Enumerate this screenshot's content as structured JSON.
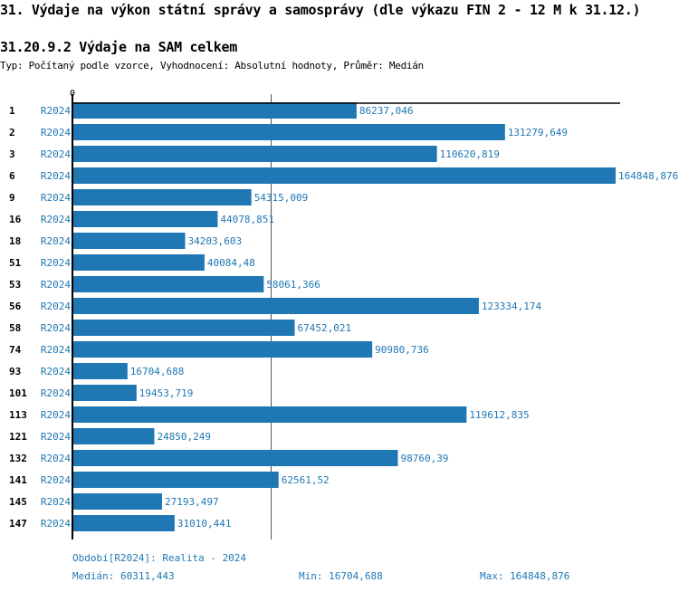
{
  "title": "31. Výdaje na výkon státní správy a samosprávy (dle výkazu FIN 2 - 12 M k 31.12.)",
  "subtitle": "31.20.9.2 Výdaje na SAM celkem",
  "description": "Typ: Počítaný podle vzorce, Vyhodnocení: Absolutní hodnoty, Průměr: Medián",
  "colors": {
    "bar": "#1f77b4",
    "text_blue": "#1f77b4"
  },
  "chart_data": {
    "type": "bar",
    "orientation": "horizontal",
    "x_tick_label": "0",
    "xlim": [
      0,
      166000
    ],
    "period_label": "R2024",
    "categories": [
      "1",
      "2",
      "3",
      "6",
      "9",
      "16",
      "18",
      "51",
      "53",
      "56",
      "58",
      "74",
      "93",
      "101",
      "113",
      "121",
      "132",
      "141",
      "145",
      "147"
    ],
    "values": [
      86237.046,
      131279.649,
      110620.819,
      164848.876,
      54315.009,
      44078.851,
      34203.603,
      40084.48,
      58061.366,
      123334.174,
      67452.021,
      90980.736,
      16704.688,
      19453.719,
      119612.835,
      24850.249,
      98760.39,
      62561.52,
      27193.497,
      31010.441
    ],
    "value_labels": [
      "86237,046",
      "131279,649",
      "110620,819",
      "164848,876",
      "54315,009",
      "44078,851",
      "34203,603",
      "40084,48",
      "58061,366",
      "123334,174",
      "67452,021",
      "90980,736",
      "16704,688",
      "19453,719",
      "119612,835",
      "24850,249",
      "98760,39",
      "62561,52",
      "27193,497",
      "31010,441"
    ],
    "median": 60311.443
  },
  "footer": {
    "period": "Období[R2024]: Realita - 2024",
    "median": "Medián: 60311,443",
    "min": "Min: 16704,688",
    "max": "Max: 164848,876"
  }
}
